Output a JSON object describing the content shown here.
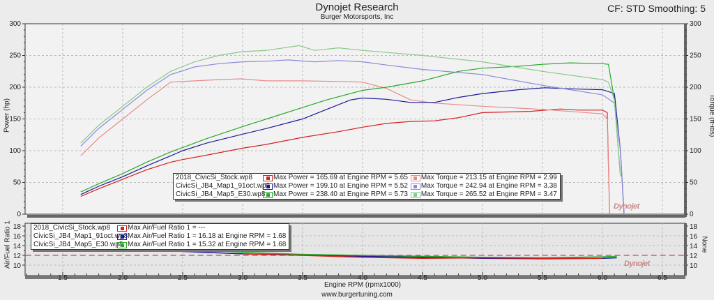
{
  "header": {
    "title": "Dynojet Research",
    "subtitle": "Burger Motorsports, Inc",
    "cf_label": "CF: STD Smoothing: 5"
  },
  "footer": {
    "url": "www.burgertuning.com"
  },
  "axes": {
    "x_label": "Engine RPM (rpmx1000)",
    "y_left_label": "Power (hp)",
    "y_right_label": "Torque (ft-lbs)",
    "afr_left_label": "Air/Fuel Ratio 1",
    "afr_right_label": "None"
  },
  "logo": {
    "text": "Dynojet"
  },
  "colors": {
    "stock_power": "#d42020",
    "stock_torque": "#e88a8a",
    "map1_power": "#1a1a9a",
    "map1_torque": "#8a8ad8",
    "e30_power": "#28a828",
    "e30_torque": "#8ac88a",
    "afr_target": "#c86464"
  },
  "legend": {
    "rows": [
      {
        "file": "2018_CivicSi_Stock.wp8",
        "power": "Max Power = 165.69 at Engine RPM = 5.65",
        "torque": "Max Torque = 213.15 at Engine RPM = 2.99",
        "pcolor": "#d42020",
        "tcolor": "#e88a8a"
      },
      {
        "file": "CivicSi_JB4_Map1_91oct.wp8",
        "power": "Max Power = 199.10 at Engine RPM = 5.52",
        "torque": "Max Torque = 242.94 at Engine RPM = 3.38",
        "pcolor": "#1a1a9a",
        "tcolor": "#8a8ad8"
      },
      {
        "file": "CivicSi_JB4_Map5_E30.wp8",
        "power": "Max Power = 238.40 at Engine RPM = 5.73",
        "torque": "Max Torque = 265.52 at Engine RPM = 3.47",
        "pcolor": "#28a828",
        "tcolor": "#8ac88a"
      }
    ]
  },
  "afr_legend": {
    "rows": [
      {
        "file": "2018_CivicSi_Stock.wp8",
        "text": "Max Air/Fuel Ratio 1 = ---",
        "color": "#d42020"
      },
      {
        "file": "CivicSi_JB4_Map1_91oct.wp8",
        "text": "Max Air/Fuel Ratio 1 = 16.18 at Engine RPM = 1.68",
        "color": "#1a1a9a"
      },
      {
        "file": "CivicSi_JB4_Map5_E30.wp8",
        "text": "Max Air/Fuel Ratio 1 = 15.32 at Engine RPM = 1.68",
        "color": "#28a828"
      }
    ]
  },
  "chart_data": [
    {
      "type": "line",
      "title": "Dynojet Research",
      "subtitle": "Burger Motorsports, Inc",
      "xlabel": "Engine RPM (rpmx1000)",
      "ylabel": "Power (hp)",
      "ylabel_right": "Torque (ft-lbs)",
      "xlim": [
        1.19,
        6.69
      ],
      "ylim": [
        0,
        300
      ],
      "ylim_right": [
        0,
        300
      ],
      "x_ticks": [
        1.5,
        2.0,
        2.5,
        3.0,
        3.5,
        4.0,
        4.5,
        5.0,
        5.5,
        6.0,
        6.5
      ],
      "y_ticks": [
        0,
        50,
        100,
        150,
        200,
        250,
        300
      ],
      "grid": true,
      "legend_position": "inside-lower-center",
      "series": [
        {
          "name": "2018_CivicSi_Stock.wp8 Power",
          "axis": "left",
          "color": "#d42020",
          "x": [
            1.65,
            1.8,
            2.0,
            2.2,
            2.4,
            2.5,
            2.7,
            3.0,
            3.2,
            3.5,
            3.8,
            4.0,
            4.2,
            4.4,
            4.6,
            4.8,
            5.0,
            5.2,
            5.4,
            5.65,
            5.8,
            6.0,
            6.04,
            6.06
          ],
          "values": [
            28,
            40,
            55,
            70,
            82,
            86,
            93,
            104,
            110,
            121,
            130,
            137,
            143,
            146,
            147,
            152,
            160,
            161,
            162,
            165.7,
            164,
            164,
            160,
            0
          ]
        },
        {
          "name": "2018_CivicSi_Stock.wp8 Torque",
          "axis": "right",
          "color": "#e88a8a",
          "x": [
            1.65,
            1.8,
            2.0,
            2.2,
            2.4,
            2.6,
            2.8,
            2.99,
            3.2,
            3.5,
            3.8,
            4.0,
            4.2,
            4.4,
            4.6,
            5.0,
            5.5,
            6.0,
            6.04,
            6.06
          ],
          "values": [
            92,
            120,
            150,
            180,
            208,
            210,
            212,
            213.15,
            210,
            210,
            209,
            208,
            198,
            180,
            175,
            170,
            165,
            158,
            150,
            0
          ]
        },
        {
          "name": "CivicSi_JB4_Map1_91oct.wp8 Power",
          "axis": "left",
          "color": "#1a1a9a",
          "x": [
            1.65,
            1.8,
            2.0,
            2.2,
            2.4,
            2.5,
            2.7,
            3.0,
            3.2,
            3.5,
            3.7,
            3.9,
            4.0,
            4.2,
            4.4,
            4.6,
            4.8,
            5.0,
            5.3,
            5.52,
            5.8,
            6.0,
            6.1,
            6.15,
            6.18
          ],
          "values": [
            31,
            44,
            59,
            76,
            92,
            100,
            112,
            126,
            135,
            150,
            165,
            180,
            183,
            181,
            176,
            176,
            184,
            190,
            196,
            199.1,
            197,
            196,
            190,
            100,
            0
          ]
        },
        {
          "name": "CivicSi_JB4_Map1_91oct.wp8 Torque",
          "axis": "right",
          "color": "#8a8ad8",
          "x": [
            1.65,
            1.8,
            2.0,
            2.2,
            2.4,
            2.6,
            2.8,
            3.0,
            3.2,
            3.38,
            3.6,
            3.8,
            4.0,
            4.2,
            4.5,
            5.0,
            5.5,
            6.0,
            6.1,
            6.15,
            6.18
          ],
          "values": [
            107,
            135,
            165,
            195,
            220,
            232,
            237,
            240,
            241,
            242.94,
            240,
            242,
            240,
            235,
            228,
            220,
            203,
            188,
            175,
            100,
            0
          ]
        },
        {
          "name": "CivicSi_JB4_Map5_E30.wp8 Power",
          "axis": "left",
          "color": "#28a828",
          "x": [
            1.65,
            1.8,
            2.0,
            2.2,
            2.4,
            2.5,
            2.7,
            3.0,
            3.2,
            3.5,
            3.7,
            4.0,
            4.2,
            4.5,
            4.8,
            5.0,
            5.3,
            5.5,
            5.73,
            6.0,
            6.05,
            6.1,
            6.15
          ],
          "values": [
            35,
            48,
            64,
            82,
            98,
            105,
            119,
            138,
            150,
            168,
            180,
            195,
            200,
            210,
            225,
            230,
            233,
            236,
            238.4,
            237,
            236,
            180,
            60
          ]
        },
        {
          "name": "CivicSi_JB4_Map5_E30.wp8 Torque",
          "axis": "right",
          "color": "#8ac88a",
          "x": [
            1.65,
            1.8,
            2.0,
            2.2,
            2.4,
            2.6,
            2.8,
            3.0,
            3.2,
            3.47,
            3.6,
            3.8,
            4.0,
            4.5,
            5.0,
            5.5,
            6.0,
            6.05,
            6.1,
            6.15
          ],
          "values": [
            112,
            140,
            170,
            200,
            225,
            240,
            250,
            256,
            258,
            265.5,
            258,
            262,
            258,
            250,
            240,
            225,
            212,
            208,
            180,
            60
          ]
        }
      ]
    },
    {
      "type": "line",
      "title": "Air/Fuel Ratio",
      "xlabel": "Engine RPM (rpmx1000)",
      "ylabel": "Air/Fuel Ratio 1",
      "ylabel_right": "None",
      "ylim": [
        10,
        18
      ],
      "y_ticks": [
        10,
        12,
        14,
        16,
        18
      ],
      "grid": true,
      "series": [
        {
          "name": "Target 12.0",
          "color": "#c86464",
          "style": "dashed",
          "x": [
            1.19,
            6.69
          ],
          "values": [
            12.0,
            12.0
          ]
        },
        {
          "name": "CivicSi_JB4_Map1_91oct.wp8 AFR",
          "color": "#1a1a9a",
          "x": [
            1.68,
            2.0,
            2.5,
            3.0,
            3.5,
            4.0,
            4.5,
            5.0,
            5.5,
            6.0,
            6.12
          ],
          "values": [
            16.18,
            14.0,
            12.8,
            12.3,
            12.1,
            11.8,
            11.6,
            11.4,
            11.3,
            11.4,
            11.5
          ]
        },
        {
          "name": "CivicSi_JB4_Map5_E30.wp8 AFR",
          "color": "#28a828",
          "x": [
            1.68,
            2.0,
            2.5,
            3.0,
            3.5,
            4.0,
            4.5,
            5.0,
            5.5,
            6.0,
            6.12
          ],
          "values": [
            15.32,
            14.5,
            13.5,
            12.6,
            12.2,
            12.0,
            11.8,
            11.6,
            11.5,
            11.7,
            11.8
          ]
        },
        {
          "name": "2018_CivicSi_Stock.wp8 AFR",
          "color": "#d42020",
          "x": [
            3.0,
            3.5,
            4.0,
            4.5,
            5.0,
            5.5,
            6.0
          ],
          "values": [
            12.3,
            12.0,
            11.6,
            11.4,
            11.5,
            11.4,
            11.4
          ]
        }
      ]
    }
  ]
}
